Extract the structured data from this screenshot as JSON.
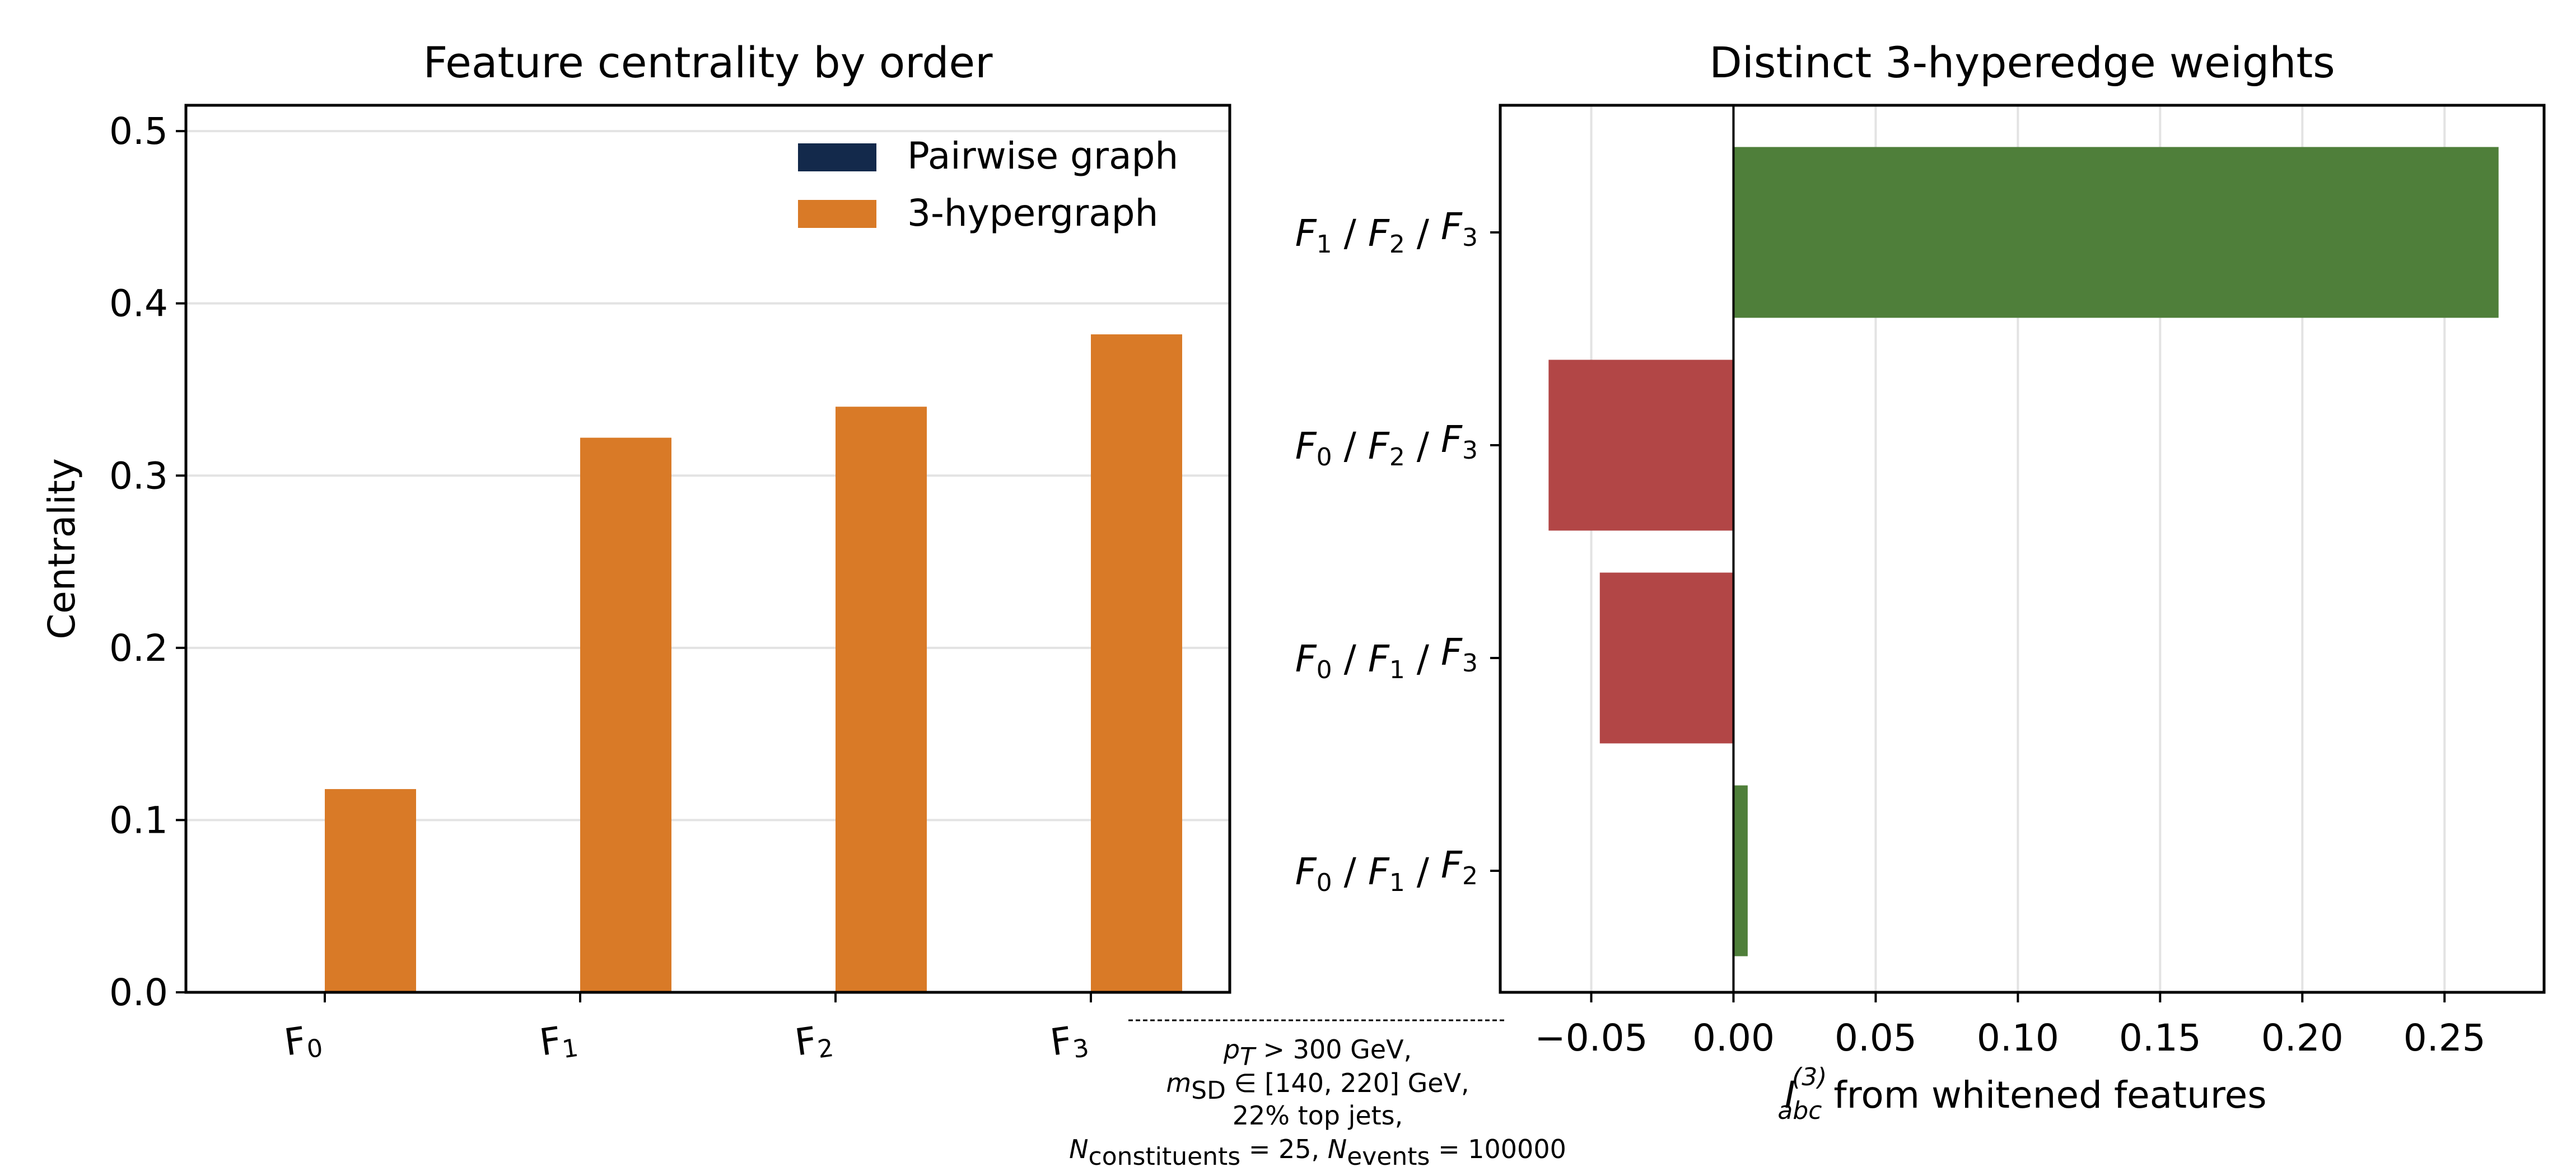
{
  "chart_data": [
    {
      "type": "bar",
      "title": "Feature centrality by order",
      "xlabel": "",
      "ylabel": "Centrality",
      "categories": [
        "F0",
        "F1",
        "F2",
        "F3"
      ],
      "category_labels": [
        {
          "base": "F",
          "sub": "0"
        },
        {
          "base": "F",
          "sub": "1"
        },
        {
          "base": "F",
          "sub": "2"
        },
        {
          "base": "F",
          "sub": "3"
        }
      ],
      "series": [
        {
          "name": "Pairwise graph",
          "values": [
            0,
            0,
            0,
            0
          ],
          "color": "#13294b"
        },
        {
          "name": "3-hypergraph",
          "values": [
            0.118,
            0.322,
            0.34,
            0.382
          ],
          "color": "#d97a27"
        }
      ],
      "ylim": [
        0,
        0.515
      ],
      "yticks": [
        "0.0",
        "0.1",
        "0.2",
        "0.3",
        "0.4",
        "0.5"
      ],
      "ytick_values": [
        0.0,
        0.1,
        0.2,
        0.3,
        0.4,
        0.5
      ],
      "grid": "y",
      "legend": "top-right"
    },
    {
      "type": "bar",
      "orientation": "horizontal",
      "title": "Distinct 3-hyperedge weights",
      "xlabel": {
        "sym": "I",
        "sub": "abc",
        "sup": "(3)",
        "rest": " from whitened features"
      },
      "ylabel": "",
      "categories": [
        "F1 / F2 / F3",
        "F0 / F2 / F3",
        "F0 / F1 / F3",
        "F0 / F1 / F2"
      ],
      "category_labels": [
        [
          {
            "b": "F",
            "s": "1"
          },
          {
            "b": "F",
            "s": "2"
          },
          {
            "b": "F",
            "s": "3"
          }
        ],
        [
          {
            "b": "F",
            "s": "0"
          },
          {
            "b": "F",
            "s": "2"
          },
          {
            "b": "F",
            "s": "3"
          }
        ],
        [
          {
            "b": "F",
            "s": "0"
          },
          {
            "b": "F",
            "s": "1"
          },
          {
            "b": "F",
            "s": "3"
          }
        ],
        [
          {
            "b": "F",
            "s": "0"
          },
          {
            "b": "F",
            "s": "1"
          },
          {
            "b": "F",
            "s": "2"
          }
        ]
      ],
      "values": [
        0.269,
        -0.065,
        -0.047,
        0.005
      ],
      "positive_color": "#4f7f3a",
      "negative_color": "#b24646",
      "xlim": [
        -0.082,
        0.285
      ],
      "xticks": [
        "−0.05",
        "0.00",
        "0.05",
        "0.10",
        "0.15",
        "0.20",
        "0.25"
      ],
      "xtick_values": [
        -0.05,
        0.0,
        0.05,
        0.1,
        0.15,
        0.2,
        0.25
      ],
      "grid": "x"
    }
  ],
  "note": {
    "line1": {
      "sym": "p",
      "sub": "T",
      "rest": " > 300 GeV,"
    },
    "line2": {
      "sym": "m",
      "sub": "SD",
      "rest": " ∈ [140, 220] GeV,"
    },
    "line3": "22% top jets,",
    "line4": {
      "sym1": "N",
      "sub1": "constituents",
      "mid": " = 25, ",
      "sym2": "N",
      "sub2": "events",
      "end": " = 100000"
    }
  }
}
